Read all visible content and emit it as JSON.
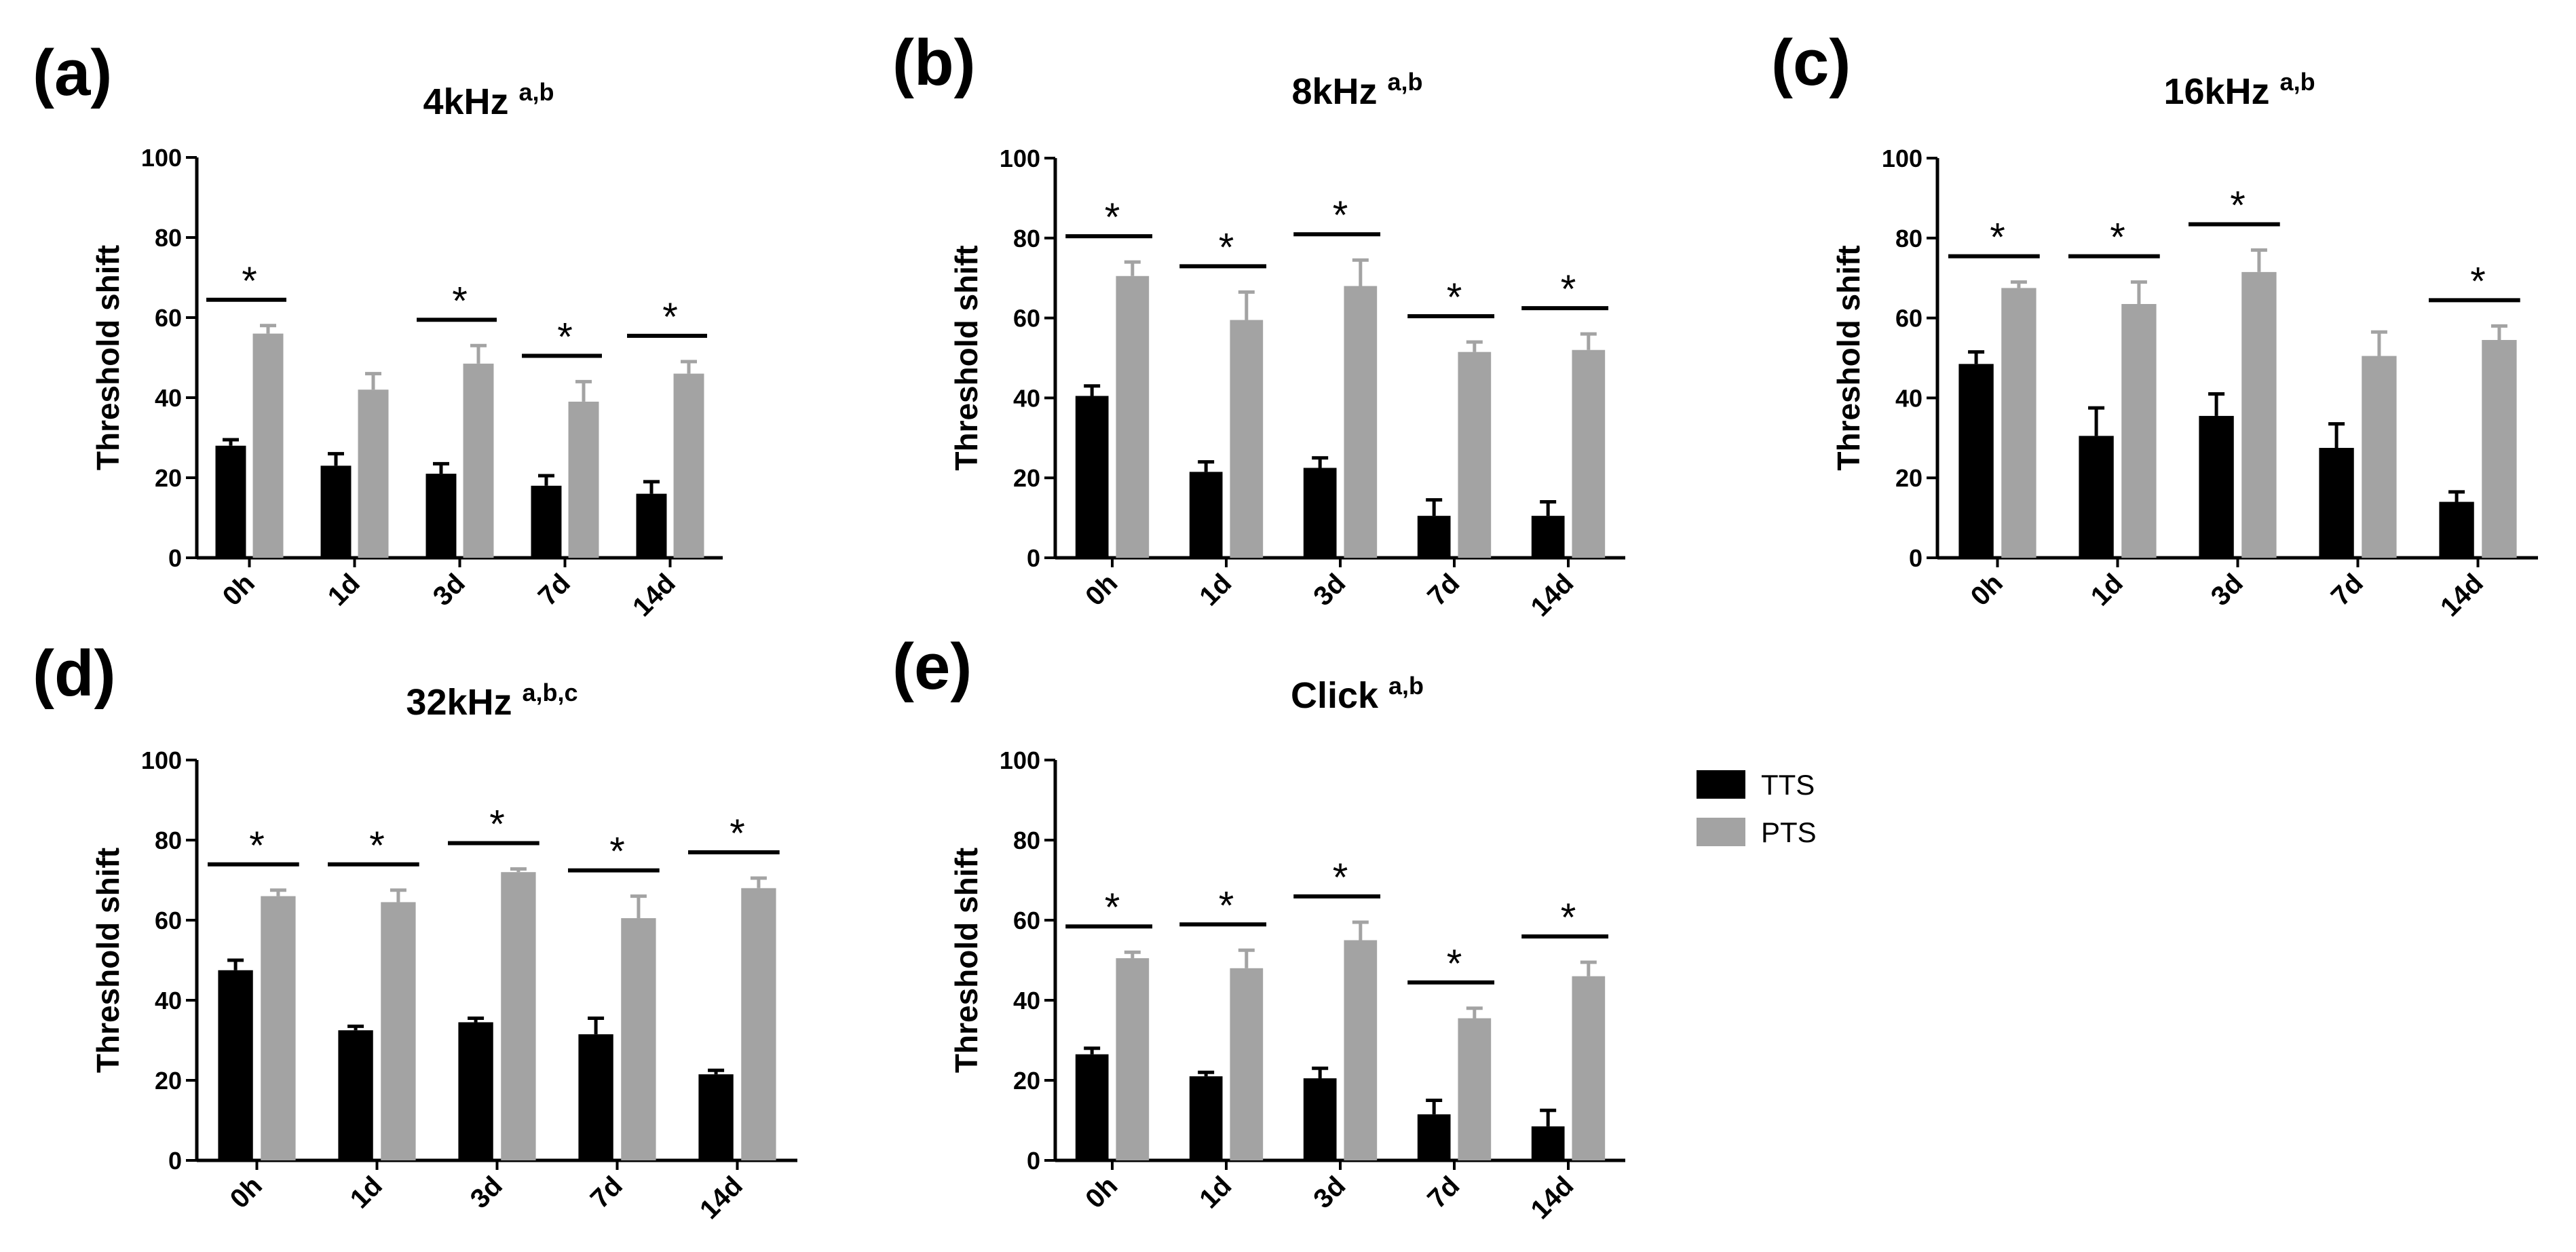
{
  "legend": {
    "items": [
      {
        "label": "TTS",
        "color": "#000000"
      },
      {
        "label": "PTS",
        "color": "#a3a3a3"
      }
    ]
  },
  "chart_data": [
    {
      "type": "bar",
      "panel": "(a)",
      "title": "4kHz",
      "superscript": "a,b",
      "xlabel": "",
      "ylabel": "Threshold shift",
      "ylim": [
        0,
        100
      ],
      "yticks": [
        "0",
        "20",
        "40",
        "60",
        "80",
        "100"
      ],
      "categories": [
        "0h",
        "1d",
        "3d",
        "7d",
        "14d"
      ],
      "series": [
        {
          "name": "TTS",
          "values": [
            28,
            23,
            21,
            18,
            16
          ],
          "errors": [
            1.5,
            3,
            2.5,
            2.5,
            3
          ]
        },
        {
          "name": "PTS",
          "values": [
            56,
            42,
            48.5,
            39,
            46
          ],
          "errors": [
            2,
            4,
            4.5,
            5,
            3
          ]
        }
      ],
      "significance": [
        "*",
        "",
        "*",
        "*",
        "*"
      ]
    },
    {
      "type": "bar",
      "panel": "(b)",
      "title": "8kHz",
      "superscript": "a,b",
      "xlabel": "",
      "ylabel": "Threshold shift",
      "ylim": [
        0,
        100
      ],
      "yticks": [
        "0",
        "20",
        "40",
        "60",
        "80",
        "100"
      ],
      "categories": [
        "0h",
        "1d",
        "3d",
        "7d",
        "14d"
      ],
      "series": [
        {
          "name": "TTS",
          "values": [
            40.5,
            21.5,
            22.5,
            10.5,
            10.5
          ],
          "errors": [
            2.5,
            2.5,
            2.5,
            4,
            3.5
          ]
        },
        {
          "name": "PTS",
          "values": [
            70.5,
            59.5,
            68,
            51.5,
            52
          ],
          "errors": [
            3.5,
            7,
            6.5,
            2.5,
            4
          ]
        }
      ],
      "significance": [
        "*",
        "*",
        "*",
        "*",
        "*"
      ]
    },
    {
      "type": "bar",
      "panel": "(c)",
      "title": "16kHz",
      "superscript": "a,b",
      "xlabel": "",
      "ylabel": "Threshold shift",
      "ylim": [
        0,
        100
      ],
      "yticks": [
        "0",
        "20",
        "40",
        "60",
        "80",
        "100"
      ],
      "categories": [
        "0h",
        "1d",
        "3d",
        "7d",
        "14d"
      ],
      "series": [
        {
          "name": "TTS",
          "values": [
            48.5,
            30.5,
            35.5,
            27.5,
            14
          ],
          "errors": [
            3,
            7,
            5.5,
            6,
            2.5
          ]
        },
        {
          "name": "PTS",
          "values": [
            67.5,
            63.5,
            71.5,
            50.5,
            54.5
          ],
          "errors": [
            1.5,
            5.5,
            5.5,
            6,
            3.5
          ]
        }
      ],
      "significance": [
        "*",
        "*",
        "*",
        "",
        "*"
      ]
    },
    {
      "type": "bar",
      "panel": "(d)",
      "title": "32kHz",
      "superscript": "a,b,c",
      "xlabel": "",
      "ylabel": "Threshold shift",
      "ylim": [
        0,
        100
      ],
      "yticks": [
        "0",
        "20",
        "40",
        "60",
        "80",
        "100"
      ],
      "categories": [
        "0h",
        "1d",
        "3d",
        "7d",
        "14d"
      ],
      "series": [
        {
          "name": "TTS",
          "values": [
            47.5,
            32.5,
            34.5,
            31.5,
            21.5
          ],
          "errors": [
            2.5,
            1,
            1,
            4,
            1
          ]
        },
        {
          "name": "PTS",
          "values": [
            66,
            64.5,
            72,
            60.5,
            68
          ],
          "errors": [
            1.5,
            3,
            0.8,
            5.5,
            2.5
          ]
        }
      ],
      "significance": [
        "*",
        "*",
        "*",
        "*",
        "*"
      ]
    },
    {
      "type": "bar",
      "panel": "(e)",
      "title": "Click",
      "superscript": "a,b",
      "xlabel": "",
      "ylabel": "Threshold shift",
      "ylim": [
        0,
        100
      ],
      "yticks": [
        "0",
        "20",
        "40",
        "60",
        "80",
        "100"
      ],
      "categories": [
        "0h",
        "1d",
        "3d",
        "7d",
        "14d"
      ],
      "series": [
        {
          "name": "TTS",
          "values": [
            26.5,
            21,
            20.5,
            11.5,
            8.5
          ],
          "errors": [
            1.5,
            1,
            2.5,
            3.5,
            4
          ]
        },
        {
          "name": "PTS",
          "values": [
            50.5,
            48,
            55,
            35.5,
            46
          ],
          "errors": [
            1.5,
            4.5,
            4.5,
            2.5,
            3.5
          ]
        }
      ],
      "significance": [
        "*",
        "*",
        "*",
        "*",
        "*"
      ]
    }
  ]
}
